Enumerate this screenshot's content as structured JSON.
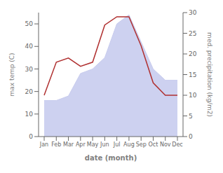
{
  "chart_data": {
    "type": "area",
    "xlabel": "date (month)",
    "ylabel": "max temp (C)",
    "y2label": "med. precipitation (kg/m2)",
    "categories": [
      "Jan",
      "Feb",
      "Mar",
      "Apr",
      "May",
      "Jun",
      "Jul",
      "Aug",
      "Sep",
      "Oct",
      "Nov",
      "Dec"
    ],
    "series": [
      {
        "type": "area",
        "color": "#c8ccee",
        "values": [
          16,
          16,
          18,
          28,
          30,
          35,
          50,
          54,
          42,
          30,
          25,
          25
        ]
      },
      {
        "type": "line",
        "color": "#b03030",
        "axis": "y2",
        "values": [
          10,
          18,
          19,
          17,
          18,
          27,
          29,
          29,
          22,
          13,
          10,
          10
        ]
      }
    ],
    "ylim": [
      0,
      55
    ],
    "yticks": [
      0,
      10,
      20,
      30,
      40,
      50
    ],
    "y2lim": [
      0,
      30
    ],
    "y2ticks": [
      0,
      5,
      10,
      15,
      20,
      25,
      30
    ]
  }
}
